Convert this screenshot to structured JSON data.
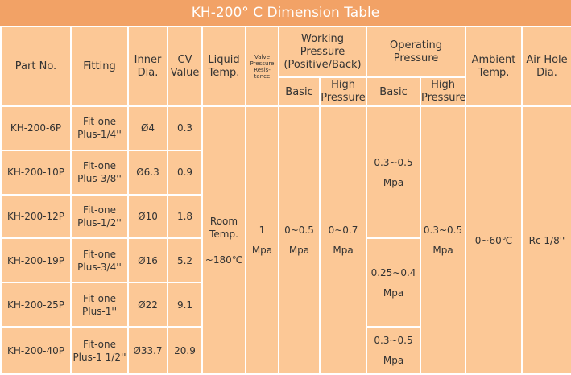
{
  "title": "KH-200° C Dimension Table",
  "columns": {
    "part_no": "Part No.",
    "fitting": "Fitting",
    "inner_dia": [
      "Inner",
      "Dia."
    ],
    "cv_value": [
      "CV",
      "Value"
    ],
    "liquid_temp": [
      "Liquid",
      "Temp."
    ],
    "valve_pressure": [
      "Valve",
      "Pressure",
      "Resis-",
      "tance"
    ],
    "working_pressure": [
      "Working",
      "Pressure",
      "(Positive/Back)"
    ],
    "working_basic": "Basic",
    "working_high": [
      "High",
      "Pressure"
    ],
    "operating_pressure": [
      "Operating",
      "Pressure"
    ],
    "operating_basic": "Basic",
    "operating_high": [
      "High",
      "Pressure"
    ],
    "ambient_temp": [
      "Ambient",
      "Temp."
    ],
    "air_hole": [
      "Air Hole",
      "Dia."
    ]
  },
  "rows": [
    {
      "part_no": "KH-200-6P",
      "fitting": [
        "Fit-one",
        "Plus-1/4''"
      ],
      "inner_dia": "Ø4",
      "cv_value": "0.3"
    },
    {
      "part_no": "KH-200-10P",
      "fitting": [
        "Fit-one",
        "Plus-3/8''"
      ],
      "inner_dia": "Ø6.3",
      "cv_value": "0.9"
    },
    {
      "part_no": "KH-200-12P",
      "fitting": [
        "Fit-one",
        "Plus-1/2''"
      ],
      "inner_dia": "Ø10",
      "cv_value": "1.8"
    },
    {
      "part_no": "KH-200-19P",
      "fitting": [
        "Fit-one",
        "Plus-3/4''"
      ],
      "inner_dia": "Ø16",
      "cv_value": "5.2"
    },
    {
      "part_no": "KH-200-25P",
      "fitting": [
        "Fit-one",
        "Plus-1''"
      ],
      "inner_dia": "Ø22",
      "cv_value": "9.1"
    },
    {
      "part_no": "KH-200-40P",
      "fitting": [
        "Fit-one",
        "Plus-1 1/2''"
      ],
      "inner_dia": "Ø33.7",
      "cv_value": "20.9"
    }
  ],
  "shared": {
    "liquid_temp": [
      "Room",
      "Temp.",
      "~180℃"
    ],
    "valve_pressure": [
      "1",
      "Mpa"
    ],
    "working_basic": [
      "0~0.5",
      "Mpa"
    ],
    "working_high": [
      "0~0.7",
      "Mpa"
    ],
    "operating_basic": [
      [
        "0.3~0.5",
        "Mpa"
      ],
      [
        "0.25~0.4",
        "Mpa"
      ],
      [
        "0.3~0.5",
        "Mpa"
      ]
    ],
    "operating_high": [
      "0.3~0.5",
      "Mpa"
    ],
    "ambient_temp": "0~60℃",
    "air_hole": "Rc 1/8''"
  }
}
